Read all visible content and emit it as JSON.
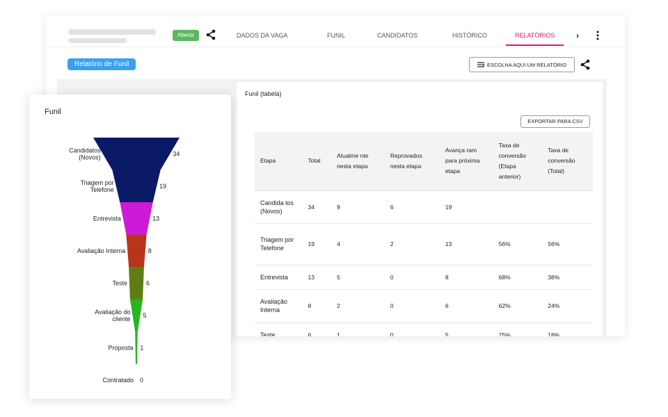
{
  "header": {
    "status_badge": "Aberta",
    "tabs": [
      {
        "label": "DADOS DA VAGA",
        "active": false
      },
      {
        "label": "FUNIL",
        "active": false
      },
      {
        "label": "CANDIDATOS",
        "active": false
      },
      {
        "label": "HISTÓRICO",
        "active": false
      },
      {
        "label": "RELATÓRIOS",
        "active": true
      }
    ],
    "more_tabs": "›"
  },
  "report": {
    "title": "Relatório de Funil",
    "choose_label": "ESCOLHA AQUI UM RELATÓRIO"
  },
  "table_panel": {
    "title": "Funil (tabela)",
    "export_label": "EXPORTAR PARA CSV",
    "columns": [
      "Etapa",
      "Total",
      "Atualme nte nesta etapa",
      "Reprovados nesta etapa",
      "Avança ram para próxima etapa",
      "Taxa de conversão (Etapa anterior)",
      "Taxa de conversão (Total)"
    ],
    "rows": [
      [
        "Candida tos (Novos)",
        "34",
        "9",
        "6",
        "19",
        "",
        ""
      ],
      [
        "Triagem por Telefone",
        "19",
        "4",
        "2",
        "13",
        "56%",
        "56%"
      ],
      [
        "Entrevista",
        "13",
        "5",
        "0",
        "8",
        "68%",
        "38%"
      ],
      [
        "Avaliação Interna",
        "8",
        "2",
        "0",
        "6",
        "62%",
        "24%"
      ],
      [
        "Teste",
        "6",
        "1",
        "0",
        "5",
        "75%",
        "18%"
      ]
    ]
  },
  "funnel_panel": {
    "title": "Funil"
  },
  "chart_data": {
    "type": "bar",
    "orientation": "funnel",
    "title": "Funil",
    "categories": [
      "Candidatos (Novos)",
      "Triagem por Telefone",
      "Entrevista",
      "Avaliação Interna",
      "Teste",
      "Avaliação do cliente",
      "Proposta",
      "Contratado"
    ],
    "label_lines": [
      [
        "Candidatos",
        "(Novos)"
      ],
      [
        "Triagem por",
        "Telefone"
      ],
      [
        "Entrevista"
      ],
      [
        "Avaliação Interna"
      ],
      [
        "Teste"
      ],
      [
        "Avaliação do",
        "cliente"
      ],
      [
        "Proposta"
      ],
      [
        "Contratado"
      ]
    ],
    "values": [
      34,
      19,
      13,
      8,
      6,
      5,
      1,
      0
    ],
    "colors": [
      "#0a1a66",
      "#0a1a66",
      "#cc1ad6",
      "#b8341a",
      "#5f7d14",
      "#27b51c",
      "#27b51c",
      "#27b51c"
    ],
    "legend": "none"
  },
  "colors": {
    "accent": "#e6136f",
    "badge_open": "#5cb85c",
    "report_title_bg": "#3aa0f0"
  },
  "icons": {
    "share": "share-icon",
    "more": "more-vertical-icon",
    "report_menu": "list-icon"
  }
}
